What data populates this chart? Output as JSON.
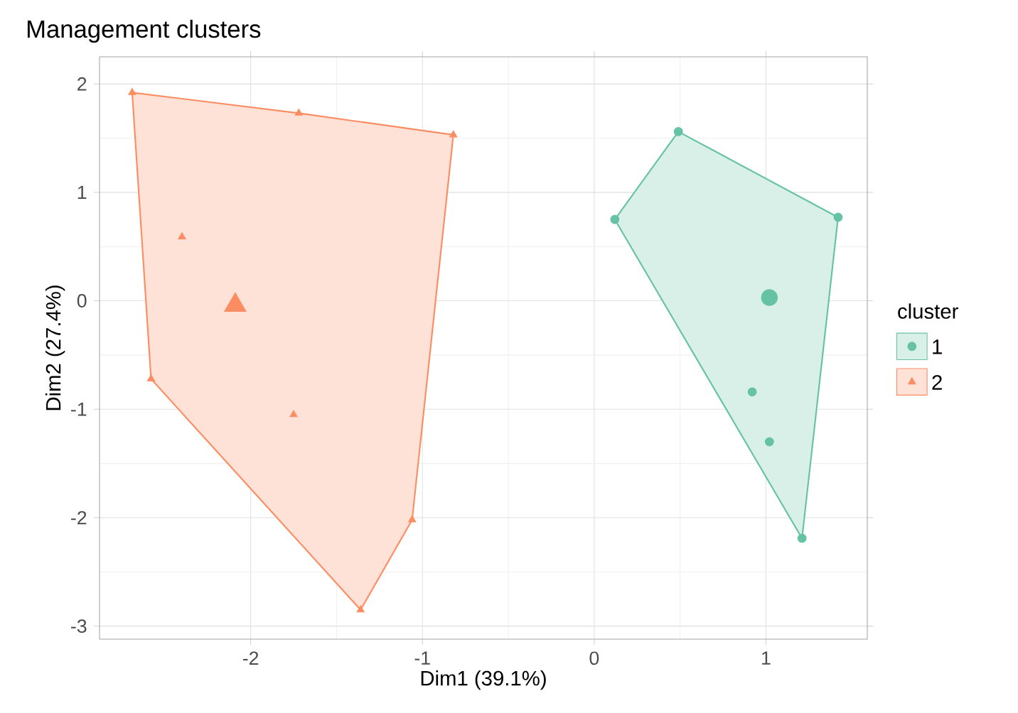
{
  "chart_data": {
    "type": "scatter",
    "title": "Management clusters",
    "xlabel": "Dim1 (39.1%)",
    "ylabel": "Dim2 (27.4%)",
    "legend_title": "cluster",
    "xlim": [
      -2.88,
      1.59
    ],
    "ylim": [
      -3.12,
      2.25
    ],
    "xticks": [
      -2,
      -1,
      0,
      1
    ],
    "yticks": [
      -3,
      -2,
      -1,
      0,
      1,
      2
    ],
    "grid": true,
    "legend": "right",
    "series": [
      {
        "type": "area",
        "color": "#66c2a5",
        "x": [
          0.49,
          1.42,
          1.21,
          0.12,
          0.49
        ],
        "values": [
          1.56,
          0.77,
          -2.19,
          0.75,
          1.56
        ]
      },
      {
        "name": "1",
        "color": "#66c2a5",
        "marker": "circle",
        "x": [
          0.49,
          0.12,
          1.42,
          0.92,
          1.02,
          1.21
        ],
        "values": [
          1.56,
          0.75,
          0.77,
          -0.84,
          -1.3,
          -2.19
        ]
      },
      {
        "type": "bubble",
        "color": "#66c2a5",
        "marker": "circle",
        "x": [
          1.02
        ],
        "values": [
          0.03
        ],
        "sizes": [
          1
        ]
      },
      {
        "type": "area",
        "color": "#fc8d62",
        "x": [
          -2.69,
          -1.72,
          -0.82,
          -1.06,
          -1.36,
          -2.58,
          -2.69
        ],
        "values": [
          1.92,
          1.73,
          1.53,
          -2.02,
          -2.85,
          -0.72,
          1.92
        ]
      },
      {
        "name": "2",
        "color": "#fc8d62",
        "marker": "triangle",
        "x": [
          -2.69,
          -1.72,
          -0.82,
          -2.4,
          -2.58,
          -1.75,
          -1.06,
          -1.36
        ],
        "values": [
          1.92,
          1.73,
          1.53,
          0.59,
          -0.72,
          -1.05,
          -2.02,
          -2.85
        ]
      },
      {
        "type": "bubble",
        "color": "#fc8d62",
        "marker": "triangle",
        "x": [
          -2.09
        ],
        "values": [
          -0.04
        ],
        "sizes": [
          1
        ]
      }
    ]
  }
}
